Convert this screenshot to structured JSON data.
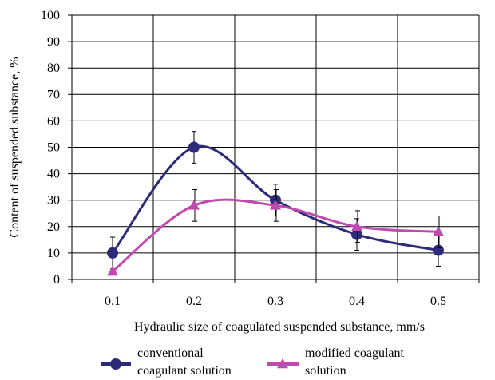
{
  "chart_data": {
    "type": "line",
    "title": "",
    "xlabel": "Hydraulic size of coagulated suspended substance, mm/s",
    "ylabel": "Content of suspended substance, %",
    "categories": [
      "0.1",
      "0.2",
      "0.3",
      "0.4",
      "0.5"
    ],
    "ylim": [
      0,
      100
    ],
    "yticks": [
      "0",
      "10",
      "20",
      "30",
      "40",
      "50",
      "60",
      "70",
      "80",
      "90",
      "100"
    ],
    "grid": true,
    "legend_position": "bottom",
    "series": [
      {
        "name": "conventional coagulant solution",
        "name_lines": [
          "conventional",
          "coagulant solution"
        ],
        "color": "#2e2a7a",
        "marker": "circle",
        "values": [
          10,
          50,
          30,
          17,
          11
        ],
        "error": [
          6,
          6,
          6,
          6,
          6
        ]
      },
      {
        "name": "modified coagulant solution",
        "name_lines": [
          "modified coagulant",
          "solution"
        ],
        "color": "#c04ab0",
        "marker": "triangle",
        "values": [
          3,
          28,
          28,
          20,
          18
        ],
        "error": [
          null,
          6,
          6,
          6,
          6
        ]
      }
    ]
  }
}
